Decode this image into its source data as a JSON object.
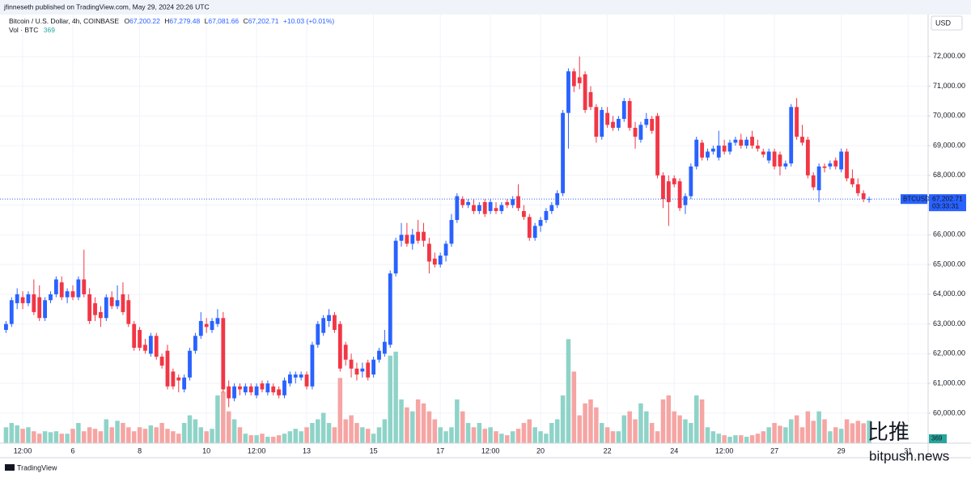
{
  "header": {
    "byline": "jfinneseth published on TradingView.com, May 29, 2024 20:26 UTC"
  },
  "chart_data": {
    "type": "candlestick",
    "title": "Bitcoin / U.S. Dollar, 4h, COINBASE",
    "legend": {
      "o_label": "O",
      "open": "67,200.22",
      "h_label": "H",
      "high": "67,279.48",
      "l_label": "L",
      "low": "67,081.66",
      "c_label": "C",
      "close": "67,202.71",
      "change": "+10.03 (+0.01%)"
    },
    "currency": "USD",
    "symbol": "BTCUSD",
    "last_price": 67202.71,
    "last_price_label": "67,202.71",
    "countdown": "03:33:31",
    "up_color": "#2962ff",
    "down_color": "#f23645",
    "grid": true,
    "ylim": [
      58990,
      73410
    ],
    "yticks": [
      {
        "value": 60000,
        "label": "60,000.00"
      },
      {
        "value": 61000,
        "label": "61,000.00"
      },
      {
        "value": 62000,
        "label": "62,000.00"
      },
      {
        "value": 63000,
        "label": "63,000.00"
      },
      {
        "value": 64000,
        "label": "64,000.00"
      },
      {
        "value": 65000,
        "label": "65,000.00"
      },
      {
        "value": 66000,
        "label": "66,000.00"
      },
      {
        "value": 67000,
        "label": "67,000.00"
      },
      {
        "value": 68000,
        "label": "68,000.00"
      },
      {
        "value": 69000,
        "label": "69,000.00"
      },
      {
        "value": 70000,
        "label": "70,000.00"
      },
      {
        "value": 71000,
        "label": "71,000.00"
      },
      {
        "value": 72000,
        "label": "72,000.00"
      }
    ],
    "xlim": [
      -1.08,
      165.6
    ],
    "xticks": [
      {
        "value": 3,
        "label": "12:00"
      },
      {
        "value": 12,
        "label": "6"
      },
      {
        "value": 24,
        "label": "8"
      },
      {
        "value": 36,
        "label": "10"
      },
      {
        "value": 45,
        "label": "12:00"
      },
      {
        "value": 54,
        "label": "13"
      },
      {
        "value": 66,
        "label": "15"
      },
      {
        "value": 78,
        "label": "17"
      },
      {
        "value": 87,
        "label": "12:00"
      },
      {
        "value": 96,
        "label": "20"
      },
      {
        "value": 108,
        "label": "22"
      },
      {
        "value": 120,
        "label": "24"
      },
      {
        "value": 129,
        "label": "12:00"
      },
      {
        "value": 138,
        "label": "27"
      },
      {
        "value": 150,
        "label": "29"
      },
      {
        "value": 162,
        "label": "31"
      }
    ],
    "candles": [
      [
        62800,
        63100,
        62700,
        63000
      ],
      [
        63000,
        63900,
        62900,
        63800
      ],
      [
        63700,
        64200,
        63500,
        64000
      ],
      [
        63900,
        64100,
        63500,
        63700
      ],
      [
        63700,
        64100,
        63600,
        64000
      ],
      [
        64000,
        64500,
        63300,
        63400
      ],
      [
        63900,
        64300,
        63100,
        63200
      ],
      [
        63200,
        63900,
        63100,
        63800
      ],
      [
        63800,
        64100,
        63700,
        64000
      ],
      [
        64000,
        64600,
        63900,
        64500
      ],
      [
        64400,
        64600,
        63800,
        63900
      ],
      [
        63900,
        64200,
        63700,
        64100
      ],
      [
        64100,
        64300,
        63800,
        63900
      ],
      [
        63900,
        64600,
        63800,
        64500
      ],
      [
        64500,
        65500,
        63900,
        64000
      ],
      [
        64000,
        64200,
        63000,
        63100
      ],
      [
        63700,
        63900,
        63100,
        63300
      ],
      [
        63400,
        63600,
        62900,
        63200
      ],
      [
        63200,
        64000,
        63100,
        63900
      ],
      [
        63900,
        64100,
        63500,
        63600
      ],
      [
        63600,
        64300,
        63500,
        63800
      ],
      [
        64000,
        64400,
        63300,
        63400
      ],
      [
        63800,
        64000,
        62900,
        63000
      ],
      [
        63000,
        63100,
        62100,
        62200
      ],
      [
        62800,
        62900,
        62100,
        62200
      ],
      [
        62300,
        62500,
        62000,
        62100
      ],
      [
        62000,
        62700,
        61900,
        62600
      ],
      [
        62600,
        62700,
        61800,
        61900
      ],
      [
        61900,
        62000,
        61500,
        61600
      ],
      [
        62100,
        62300,
        60800,
        60900
      ],
      [
        61400,
        61500,
        60800,
        60900
      ],
      [
        61200,
        61300,
        60700,
        61100
      ],
      [
        60800,
        61300,
        60700,
        61200
      ],
      [
        61200,
        62200,
        61100,
        62100
      ],
      [
        62100,
        62700,
        62000,
        62600
      ],
      [
        62600,
        63400,
        62500,
        63100
      ],
      [
        63000,
        63200,
        62700,
        62900
      ],
      [
        62800,
        63200,
        62700,
        63100
      ],
      [
        63000,
        63500,
        62900,
        63200
      ],
      [
        63200,
        63400,
        60700,
        60800
      ],
      [
        60900,
        61100,
        60200,
        60500
      ],
      [
        60500,
        61000,
        60400,
        60900
      ],
      [
        60900,
        61000,
        60600,
        60800
      ],
      [
        60700,
        61000,
        60600,
        60900
      ],
      [
        60900,
        61000,
        60600,
        60700
      ],
      [
        60600,
        61000,
        60500,
        60900
      ],
      [
        61000,
        61100,
        60700,
        60800
      ],
      [
        60700,
        61100,
        60600,
        61000
      ],
      [
        60900,
        61000,
        60600,
        60700
      ],
      [
        60800,
        60900,
        60500,
        60600
      ],
      [
        60600,
        61200,
        60500,
        61100
      ],
      [
        61000,
        61400,
        60900,
        61300
      ],
      [
        61200,
        61400,
        61000,
        61300
      ],
      [
        61200,
        61400,
        61100,
        61300
      ],
      [
        61300,
        61400,
        60800,
        60900
      ],
      [
        60900,
        62400,
        60800,
        62300
      ],
      [
        62300,
        63100,
        62200,
        63000
      ],
      [
        62700,
        63300,
        62600,
        63200
      ],
      [
        63100,
        63500,
        62900,
        63300
      ],
      [
        63300,
        63400,
        62700,
        62800
      ],
      [
        63000,
        63100,
        61400,
        61500
      ],
      [
        62300,
        62400,
        61600,
        61800
      ],
      [
        61800,
        62000,
        61200,
        61500
      ],
      [
        61500,
        61700,
        61100,
        61300
      ],
      [
        61400,
        61700,
        61200,
        61500
      ],
      [
        61700,
        61800,
        61100,
        61200
      ],
      [
        61300,
        61900,
        61200,
        61800
      ],
      [
        61800,
        62200,
        61700,
        62100
      ],
      [
        62000,
        62800,
        61900,
        62400
      ],
      [
        62300,
        64800,
        62200,
        64700
      ],
      [
        64700,
        65900,
        64600,
        65800
      ],
      [
        65800,
        66400,
        65600,
        66000
      ],
      [
        66000,
        66400,
        65600,
        65700
      ],
      [
        65700,
        66200,
        65500,
        66000
      ],
      [
        66100,
        66500,
        65700,
        65800
      ],
      [
        66100,
        66400,
        65600,
        65800
      ],
      [
        65700,
        65900,
        64700,
        65100
      ],
      [
        65200,
        65400,
        64900,
        65000
      ],
      [
        65000,
        65400,
        64900,
        65300
      ],
      [
        65300,
        65800,
        65100,
        65700
      ],
      [
        65700,
        66700,
        65600,
        66500
      ],
      [
        66500,
        67400,
        66400,
        67300
      ],
      [
        67200,
        67300,
        66900,
        67000
      ],
      [
        67000,
        67200,
        66900,
        67100
      ],
      [
        67000,
        67200,
        66700,
        66800
      ],
      [
        66800,
        67100,
        66700,
        67000
      ],
      [
        67100,
        67200,
        66600,
        66700
      ],
      [
        66800,
        67200,
        66700,
        67100
      ],
      [
        66900,
        67100,
        66700,
        66800
      ],
      [
        66800,
        67100,
        66700,
        67000
      ],
      [
        67100,
        67200,
        66900,
        67000
      ],
      [
        67000,
        67300,
        66900,
        67200
      ],
      [
        67300,
        67700,
        66800,
        66900
      ],
      [
        66800,
        67000,
        66500,
        66600
      ],
      [
        66600,
        66700,
        65800,
        65900
      ],
      [
        65900,
        66400,
        65800,
        66300
      ],
      [
        66300,
        66600,
        66100,
        66500
      ],
      [
        66500,
        66900,
        66400,
        66800
      ],
      [
        66800,
        67100,
        66700,
        67000
      ],
      [
        67000,
        67500,
        66900,
        67400
      ],
      [
        67400,
        70200,
        67300,
        70100
      ],
      [
        70100,
        71600,
        68900,
        71500
      ],
      [
        71500,
        71600,
        70800,
        71000
      ],
      [
        71300,
        72000,
        70900,
        71100
      ],
      [
        71400,
        71500,
        70100,
        70200
      ],
      [
        70800,
        71000,
        70200,
        70300
      ],
      [
        70300,
        70400,
        69100,
        69300
      ],
      [
        69300,
        70300,
        69200,
        70200
      ],
      [
        70100,
        70300,
        69600,
        69700
      ],
      [
        69800,
        70000,
        69500,
        69600
      ],
      [
        69600,
        70000,
        69500,
        69900
      ],
      [
        69900,
        70600,
        69800,
        70500
      ],
      [
        70500,
        70600,
        69500,
        69600
      ],
      [
        69600,
        69800,
        68900,
        69300
      ],
      [
        69200,
        69800,
        69100,
        69700
      ],
      [
        69700,
        70100,
        69600,
        69900
      ],
      [
        69900,
        70000,
        69400,
        69500
      ],
      [
        70000,
        70100,
        67900,
        68000
      ],
      [
        68000,
        68100,
        66900,
        67200
      ],
      [
        67800,
        68000,
        66300,
        67100
      ],
      [
        67900,
        68000,
        67600,
        67700
      ],
      [
        67800,
        67900,
        66800,
        66900
      ],
      [
        67000,
        67400,
        66700,
        67300
      ],
      [
        67300,
        68400,
        67200,
        68300
      ],
      [
        68300,
        69300,
        68200,
        69200
      ],
      [
        69100,
        69200,
        68500,
        68600
      ],
      [
        68600,
        68900,
        68500,
        68800
      ],
      [
        68800,
        69000,
        68700,
        68900
      ],
      [
        68600,
        69500,
        68500,
        69000
      ],
      [
        69000,
        69200,
        68700,
        68800
      ],
      [
        68800,
        69200,
        68700,
        69100
      ],
      [
        69100,
        69300,
        69000,
        69200
      ],
      [
        69200,
        69400,
        68900,
        69000
      ],
      [
        69000,
        69300,
        68900,
        69200
      ],
      [
        69300,
        69500,
        68900,
        69000
      ],
      [
        69000,
        69200,
        68800,
        68900
      ],
      [
        68800,
        68900,
        68600,
        68700
      ],
      [
        68500,
        68900,
        68400,
        68800
      ],
      [
        68800,
        68900,
        68200,
        68300
      ],
      [
        68700,
        68800,
        68000,
        68300
      ],
      [
        68300,
        68500,
        68200,
        68400
      ],
      [
        68400,
        70400,
        68300,
        70300
      ],
      [
        70300,
        70600,
        69200,
        69300
      ],
      [
        69300,
        69700,
        69000,
        69100
      ],
      [
        69200,
        69300,
        67900,
        68000
      ],
      [
        68000,
        68100,
        67500,
        67600
      ],
      [
        67500,
        68400,
        67100,
        68300
      ],
      [
        68300,
        68400,
        68100,
        68250
      ],
      [
        68300,
        68500,
        68200,
        68400
      ],
      [
        68500,
        68600,
        68200,
        68300
      ],
      [
        68200,
        68900,
        68100,
        68800
      ],
      [
        68800,
        68900,
        67800,
        67900
      ],
      [
        67900,
        68200,
        67600,
        67700
      ],
      [
        67700,
        67900,
        67300,
        67400
      ],
      [
        67400,
        67500,
        67100,
        67200
      ],
      [
        67200.22,
        67279.48,
        67081.66,
        67202.71
      ]
    ],
    "volume": {
      "name": "Vol · BTC",
      "up_color": "#8fd3c8",
      "down_color": "#f5a5a3",
      "vlim": [
        0,
        7000
      ],
      "values": [
        260,
        330,
        290,
        235,
        260,
        195,
        155,
        195,
        180,
        195,
        155,
        155,
        235,
        330,
        195,
        260,
        235,
        195,
        390,
        260,
        365,
        330,
        260,
        195,
        260,
        235,
        290,
        260,
        330,
        235,
        195,
        155,
        330,
        455,
        390,
        260,
        195,
        235,
        780,
        845,
        520,
        390,
        260,
        155,
        130,
        130,
        155,
        105,
        105,
        130,
        155,
        195,
        235,
        195,
        260,
        330,
        390,
        495,
        330,
        260,
        1065,
        390,
        455,
        330,
        260,
        235,
        155,
        260,
        390,
        1430,
        1495,
        715,
        585,
        520,
        715,
        650,
        520,
        390,
        260,
        195,
        260,
        715,
        520,
        330,
        260,
        330,
        235,
        260,
        195,
        155,
        130,
        195,
        235,
        330,
        390,
        260,
        195,
        155,
        330,
        390,
        780,
        1700,
        1170,
        455,
        650,
        715,
        585,
        330,
        260,
        195,
        195,
        455,
        520,
        390,
        650,
        520,
        330,
        195,
        715,
        780,
        520,
        455,
        390,
        330,
        780,
        715,
        260,
        195,
        155,
        130,
        105,
        130,
        130,
        105,
        130,
        155,
        195,
        260,
        330,
        285,
        260,
        390,
        455,
        260,
        520,
        365,
        520,
        390,
        195,
        260,
        235,
        390,
        325,
        365,
        325,
        369
      ]
    }
  },
  "footer": {
    "brand": "TradingView"
  },
  "watermark": {
    "mark": "比推",
    "site": "bitpush.news"
  }
}
